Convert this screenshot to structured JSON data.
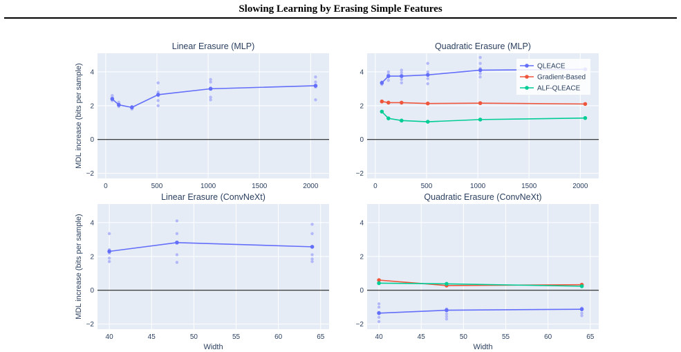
{
  "figure_title": "Slowing Learning by Erasing Simple Features",
  "legend": [
    "QLEACE",
    "Gradient-Based",
    "ALF-QLEACE"
  ],
  "colors": {
    "QLEACE": "#636efa",
    "Gradient-Based": "#ef553b",
    "ALF-QLEACE": "#00cc96",
    "QLEACE_light": "#b3b8f8",
    "plot_bg": "#e5ecf6",
    "grid": "#ffffff",
    "zero_line": "#000000"
  },
  "chart_data": [
    {
      "type": "line",
      "title": "Linear Erasure (MLP)",
      "xlabel": "",
      "ylabel": "MDL increase (bits per sample)",
      "xlim": [
        -80,
        2180
      ],
      "ylim": [
        -2.3,
        5.1
      ],
      "xticks": [
        0,
        500,
        1000,
        1500,
        2000
      ],
      "yticks": [
        -2,
        0,
        2,
        4
      ],
      "series": [
        {
          "key": "QLEACE",
          "x": [
            64,
            128,
            256,
            512,
            1024,
            2048
          ],
          "y": [
            2.4,
            2.05,
            1.9,
            2.65,
            3.0,
            3.18
          ]
        }
      ],
      "scatter": [
        {
          "key": "QLEACE_light",
          "x": [
            64,
            64,
            64,
            64,
            128,
            128,
            128,
            128,
            256,
            256,
            256,
            512,
            512,
            512,
            512,
            512,
            1024,
            1024,
            1024,
            1024,
            1024,
            2048,
            2048,
            2048,
            2048
          ],
          "y": [
            2.6,
            2.5,
            2.35,
            2.3,
            2.2,
            2.1,
            2.0,
            1.95,
            1.95,
            1.85,
            1.8,
            3.35,
            2.8,
            2.6,
            2.3,
            2.0,
            3.55,
            3.4,
            3.05,
            2.5,
            2.35,
            3.7,
            3.4,
            3.1,
            2.35
          ]
        }
      ]
    },
    {
      "type": "line",
      "title": "Quadratic Erasure (MLP)",
      "xlabel": "",
      "ylabel": "",
      "xlim": [
        -80,
        2180
      ],
      "ylim": [
        -2.3,
        5.1
      ],
      "xticks": [
        0,
        500,
        1000,
        1500,
        2000
      ],
      "yticks": [
        -2,
        0,
        2,
        4
      ],
      "series": [
        {
          "key": "QLEACE",
          "x": [
            64,
            128,
            256,
            512,
            1024,
            2048
          ],
          "y": [
            3.35,
            3.75,
            3.75,
            3.82,
            4.1,
            4.15
          ]
        },
        {
          "key": "Gradient-Based",
          "x": [
            64,
            128,
            256,
            512,
            1024,
            2048
          ],
          "y": [
            2.25,
            2.18,
            2.18,
            2.13,
            2.15,
            2.1
          ]
        },
        {
          "key": "ALF-QLEACE",
          "x": [
            64,
            128,
            256,
            512,
            1024,
            2048
          ],
          "y": [
            1.65,
            1.25,
            1.12,
            1.05,
            1.18,
            1.27
          ]
        }
      ],
      "scatter": [
        {
          "key": "QLEACE_light",
          "x": [
            64,
            64,
            128,
            128,
            128,
            128,
            256,
            256,
            256,
            256,
            256,
            512,
            512,
            512,
            512,
            512,
            1024,
            1024,
            1024,
            1024,
            1024
          ],
          "y": [
            3.4,
            3.25,
            4.0,
            3.85,
            3.7,
            3.5,
            4.1,
            3.95,
            3.75,
            3.55,
            3.35,
            4.5,
            4.0,
            3.85,
            3.6,
            3.3,
            4.85,
            4.5,
            4.2,
            3.9,
            3.7
          ]
        }
      ]
    },
    {
      "type": "line",
      "title": "Linear Erasure (ConvNeXt)",
      "xlabel": "Width",
      "ylabel": "MDL increase (bits per sample)",
      "xlim": [
        38.6,
        66.0
      ],
      "ylim": [
        -2.3,
        5.1
      ],
      "xticks": [
        40,
        45,
        50,
        55,
        60,
        65
      ],
      "yticks": [
        -2,
        0,
        2,
        4
      ],
      "series": [
        {
          "key": "QLEACE",
          "x": [
            40,
            48,
            64
          ],
          "y": [
            2.3,
            2.82,
            2.57
          ]
        }
      ],
      "scatter": [
        {
          "key": "QLEACE_light",
          "x": [
            40,
            40,
            40,
            40,
            40,
            48,
            48,
            48,
            48,
            48,
            64,
            64,
            64,
            64,
            64,
            64
          ],
          "y": [
            3.35,
            2.4,
            2.2,
            1.9,
            1.7,
            4.1,
            3.35,
            2.85,
            2.1,
            1.65,
            3.9,
            3.35,
            2.55,
            2.1,
            1.85,
            1.7
          ]
        }
      ]
    },
    {
      "type": "line",
      "title": "Quadratic Erasure (ConvNeXt)",
      "xlabel": "Width",
      "ylabel": "",
      "xlim": [
        38.6,
        66.0
      ],
      "ylim": [
        -2.3,
        5.1
      ],
      "xticks": [
        40,
        45,
        50,
        55,
        60,
        65
      ],
      "yticks": [
        -2,
        0,
        2,
        4
      ],
      "series": [
        {
          "key": "QLEACE",
          "x": [
            40,
            48,
            64
          ],
          "y": [
            -1.35,
            -1.18,
            -1.12
          ]
        },
        {
          "key": "Gradient-Based",
          "x": [
            40,
            48,
            64
          ],
          "y": [
            0.6,
            0.28,
            0.33
          ]
        },
        {
          "key": "ALF-QLEACE",
          "x": [
            40,
            48,
            64
          ],
          "y": [
            0.42,
            0.38,
            0.24
          ]
        }
      ],
      "scatter": [
        {
          "key": "QLEACE_light",
          "x": [
            40,
            40,
            40,
            40,
            40,
            48,
            48,
            48,
            48,
            48,
            64,
            64,
            64,
            64
          ],
          "y": [
            -0.8,
            -1.0,
            -1.3,
            -1.6,
            -1.85,
            -1.1,
            -1.2,
            -1.4,
            -1.55,
            -1.7,
            -1.05,
            -1.15,
            -1.35,
            -1.5
          ]
        }
      ]
    }
  ]
}
